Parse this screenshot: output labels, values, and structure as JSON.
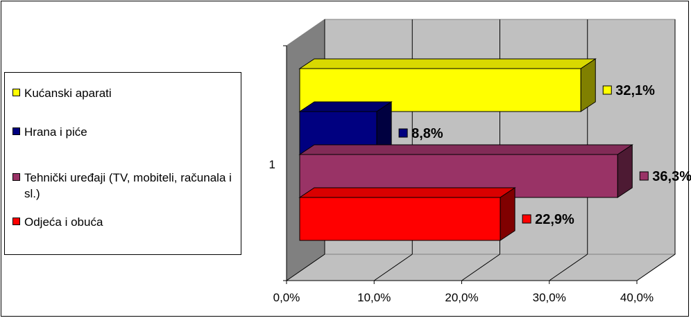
{
  "chart_data": {
    "type": "bar",
    "orientation": "horizontal",
    "style": "3d",
    "categories": [
      "1"
    ],
    "series": [
      {
        "name": "Kućanski aparati",
        "value": 32.1,
        "label": "32,1%",
        "color": "#ffff00"
      },
      {
        "name": "Hrana i piće",
        "value": 8.8,
        "label": "8,8%",
        "color": "#000080"
      },
      {
        "name": "Tehnički uređaji (TV, mobiteli, računala i sl.)",
        "value": 36.3,
        "label": "36,3%",
        "color": "#993366"
      },
      {
        "name": "Odjeća i obuća",
        "value": 22.9,
        "label": "22,9%",
        "color": "#ff0000"
      }
    ],
    "xlim": [
      0,
      40
    ],
    "xticks": [
      0,
      10,
      20,
      30,
      40
    ],
    "xtick_labels": [
      "0,0%",
      "10,0%",
      "20,0%",
      "30,0%",
      "40,0%"
    ],
    "grid": true,
    "legend_position": "left"
  },
  "legend": {
    "items": [
      {
        "label": "Kućanski aparati",
        "color": "#ffff00"
      },
      {
        "label": "Hrana i piće",
        "color": "#000080"
      },
      {
        "label": "Tehnički uređaji (TV, mobiteli, računala i sl.)",
        "color": "#993366"
      },
      {
        "label": "Odjeća i obuća",
        "color": "#ff0000"
      }
    ]
  }
}
